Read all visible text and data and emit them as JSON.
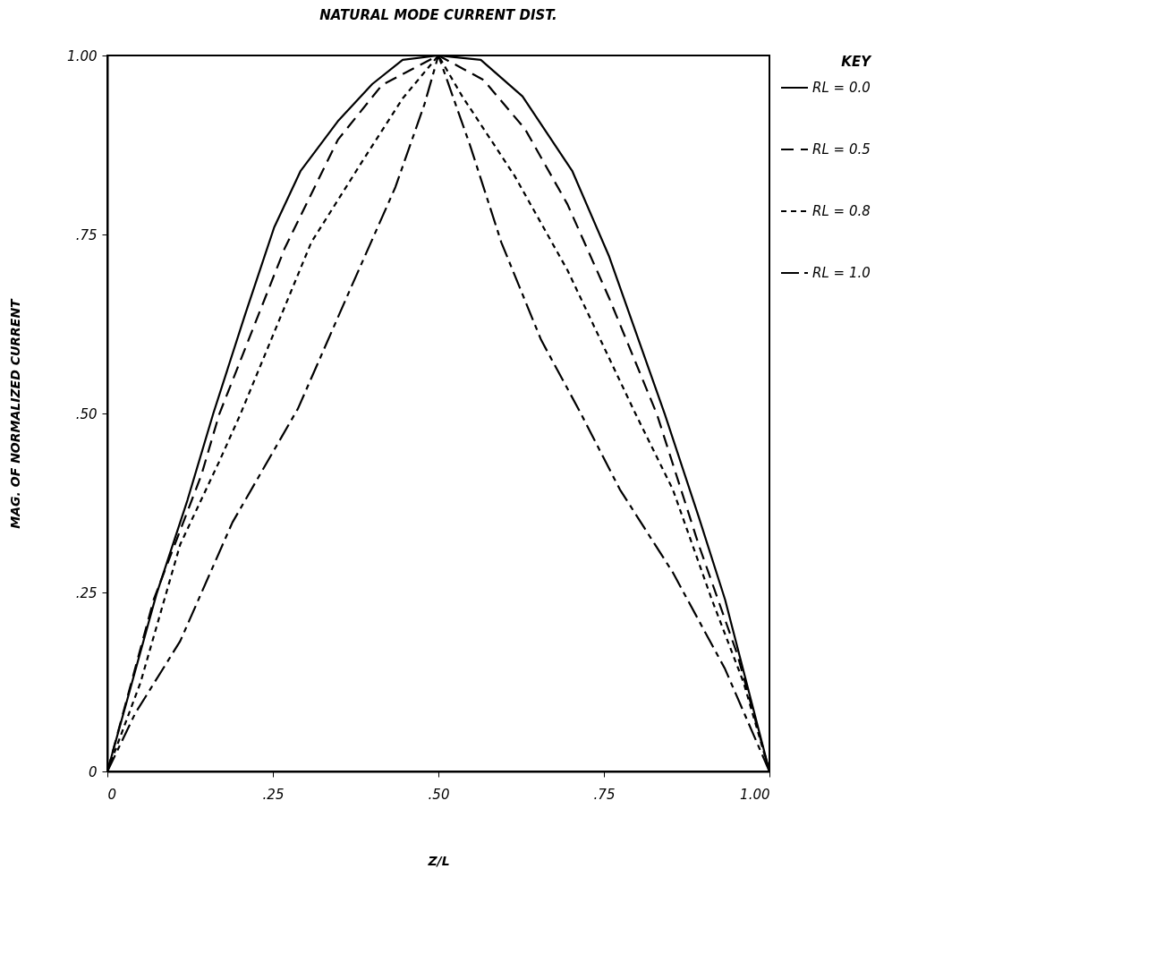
{
  "chart_data": {
    "type": "line",
    "title": "NATURAL MODE CURRENT DIST.",
    "xlabel": "Z/L",
    "ylabel": "MAG. OF NORMALIZED CURRENT",
    "legend_title": "KEY",
    "legend": "right",
    "grid": false,
    "xlim": [
      0,
      1
    ],
    "ylim": [
      0,
      1
    ],
    "xticks": [
      0,
      {
        "value": 0.25,
        "label": ".25"
      },
      {
        "value": 0.5,
        "label": ".50"
      },
      {
        "value": 0.75,
        "label": ".75"
      },
      {
        "value": 1,
        "label": "1.00"
      }
    ],
    "yticks": [
      0,
      {
        "value": 0.25,
        "label": ".25"
      },
      {
        "value": 0.5,
        "label": ".50"
      },
      {
        "value": 0.75,
        "label": ".75"
      },
      {
        "value": 1,
        "label": "1.00"
      }
    ],
    "series": [
      {
        "name": "RL = 0.0",
        "color": "#000000",
        "line_style": "solid",
        "x": [
          0,
          0.074,
          0.121,
          0.16,
          0.208,
          0.252,
          0.292,
          0.348,
          0.4,
          0.446,
          0.5,
          0.564,
          0.627,
          0.702,
          0.758,
          0.842,
          0.893,
          0.933,
          1
        ],
        "values": [
          0,
          0.247,
          0.379,
          0.5,
          0.638,
          0.76,
          0.839,
          0.908,
          0.96,
          0.994,
          1,
          0.994,
          0.943,
          0.839,
          0.719,
          0.499,
          0.356,
          0.24,
          0
        ]
      },
      {
        "name": "RL = 0.5",
        "color": "#000000",
        "line_style": "dashed",
        "x": [
          0,
          0.07,
          0.142,
          0.169,
          0.268,
          0.348,
          0.415,
          0.5,
          0.568,
          0.631,
          0.695,
          0.758,
          0.83,
          0.893,
          0.952,
          1
        ],
        "values": [
          0,
          0.24,
          0.414,
          0.499,
          0.731,
          0.882,
          0.959,
          1,
          0.966,
          0.897,
          0.792,
          0.661,
          0.499,
          0.317,
          0.162,
          0
        ]
      },
      {
        "name": "RL = 0.8",
        "color": "#000000",
        "line_style": "dotted",
        "x": [
          0,
          0.05,
          0.11,
          0.169,
          0.201,
          0.308,
          0.387,
          0.446,
          0.5,
          0.536,
          0.615,
          0.695,
          0.798,
          0.854,
          0.913,
          0.961,
          1
        ],
        "values": [
          0,
          0.124,
          0.317,
          0.433,
          0.499,
          0.739,
          0.855,
          0.94,
          1,
          0.943,
          0.832,
          0.7,
          0.499,
          0.394,
          0.24,
          0.124,
          0
        ]
      },
      {
        "name": "RL = 1.0",
        "color": "#000000",
        "line_style": "dashed",
        "x": [
          0,
          0.042,
          0.11,
          0.189,
          0.288,
          0.368,
          0.435,
          0.479,
          0.5,
          0.548,
          0.595,
          0.655,
          0.714,
          0.774,
          0.854,
          0.933,
          1
        ],
        "values": [
          0,
          0.081,
          0.182,
          0.348,
          0.507,
          0.676,
          0.816,
          0.932,
          1,
          0.874,
          0.739,
          0.603,
          0.502,
          0.394,
          0.278,
          0.143,
          0
        ]
      }
    ]
  }
}
